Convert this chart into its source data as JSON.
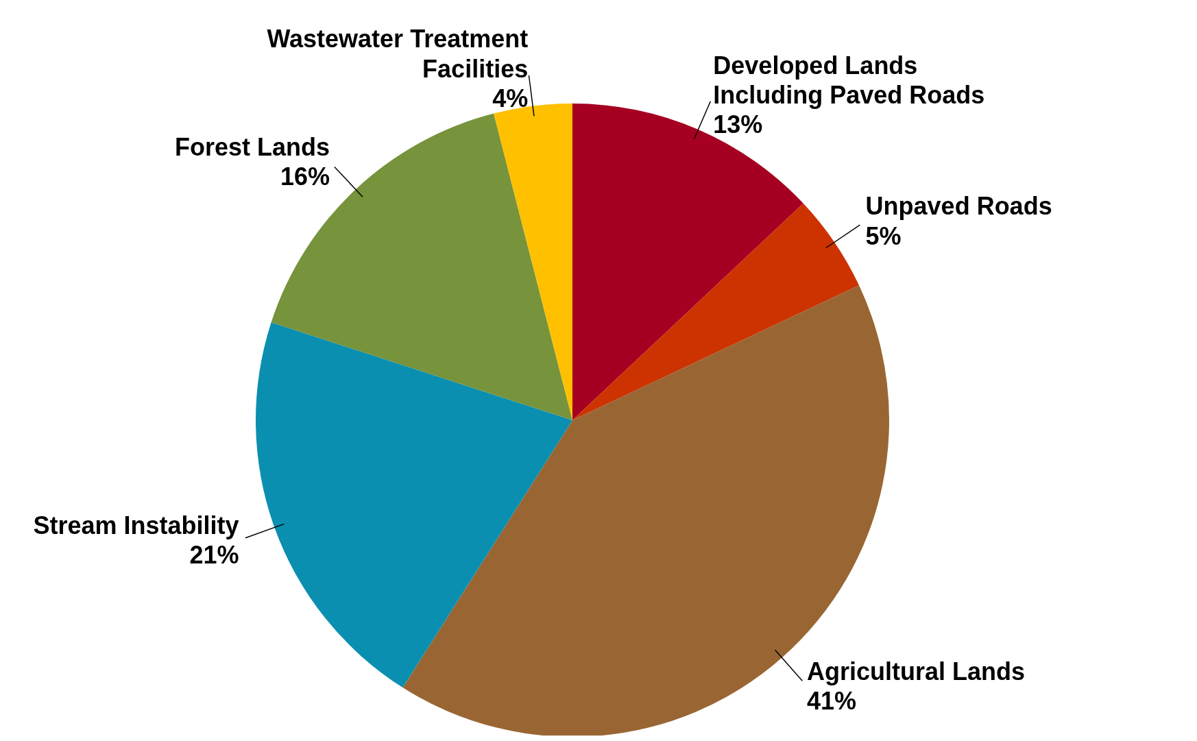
{
  "chart_data": {
    "type": "pie",
    "categories": [
      "Developed Lands Including Paved Roads",
      "Unpaved Roads",
      "Agricultural Lands",
      "Stream Instability",
      "Forest Lands",
      "Wastewater Treatment Facilities"
    ],
    "values": [
      13,
      5,
      41,
      21,
      16,
      4
    ],
    "value_labels": [
      "13%",
      "5%",
      "41%",
      "21%",
      "16%",
      "4%"
    ],
    "colors": [
      "#a50021",
      "#cc3300",
      "#996633",
      "#0a8fb0",
      "#77933c",
      "#ffc000"
    ],
    "legend": false
  }
}
